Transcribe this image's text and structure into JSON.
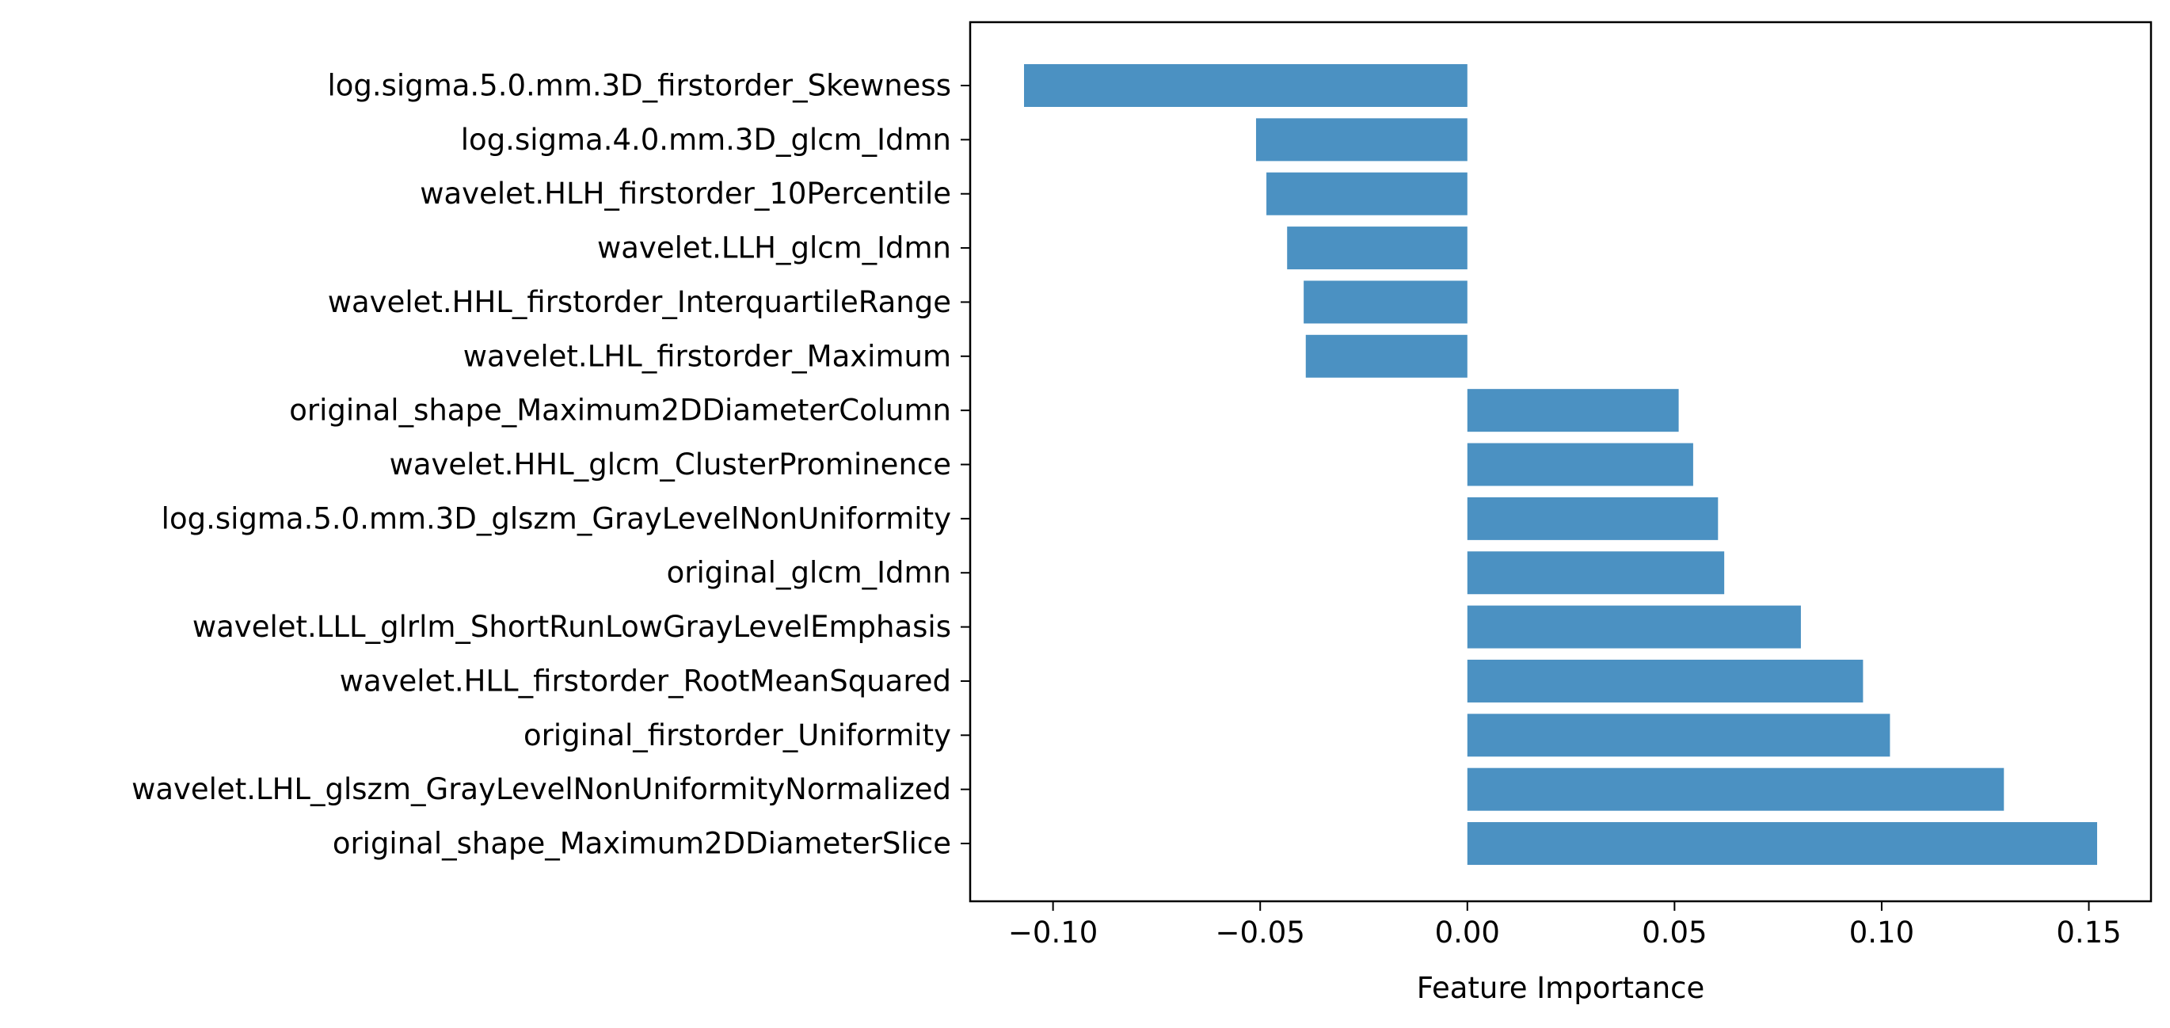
{
  "chart_data": {
    "type": "bar",
    "orientation": "horizontal",
    "title": "",
    "xlabel": "Feature Importance",
    "ylabel": "",
    "xlim": [
      -0.12,
      0.165
    ],
    "xticks": [
      -0.1,
      -0.05,
      0.0,
      0.05,
      0.1,
      0.15
    ],
    "xtick_labels": [
      "−0.10",
      "−0.05",
      "0.00",
      "0.05",
      "0.10",
      "0.15"
    ],
    "grid": false,
    "bar_color": "#4b91c2",
    "categories": [
      "log.sigma.5.0.mm.3D_firstorder_Skewness",
      "log.sigma.4.0.mm.3D_glcm_Idmn",
      "wavelet.HLH_firstorder_10Percentile",
      "wavelet.LLH_glcm_Idmn",
      "wavelet.HHL_firstorder_InterquartileRange",
      "wavelet.LHL_firstorder_Maximum",
      "original_shape_Maximum2DDiameterColumn",
      "wavelet.HHL_glcm_ClusterProminence",
      "log.sigma.5.0.mm.3D_glszm_GrayLevelNonUniformity",
      "original_glcm_Idmn",
      "wavelet.LLL_glrlm_ShortRunLowGrayLevelEmphasis",
      "wavelet.HLL_firstorder_RootMeanSquared",
      "original_firstorder_Uniformity",
      "wavelet.LHL_glszm_GrayLevelNonUniformityNormalized",
      "original_shape_Maximum2DDiameterSlice"
    ],
    "values": [
      -0.107,
      -0.051,
      -0.0485,
      -0.0435,
      -0.0395,
      -0.039,
      0.051,
      0.0545,
      0.0605,
      0.062,
      0.0805,
      0.0955,
      0.102,
      0.1295,
      0.152
    ]
  }
}
